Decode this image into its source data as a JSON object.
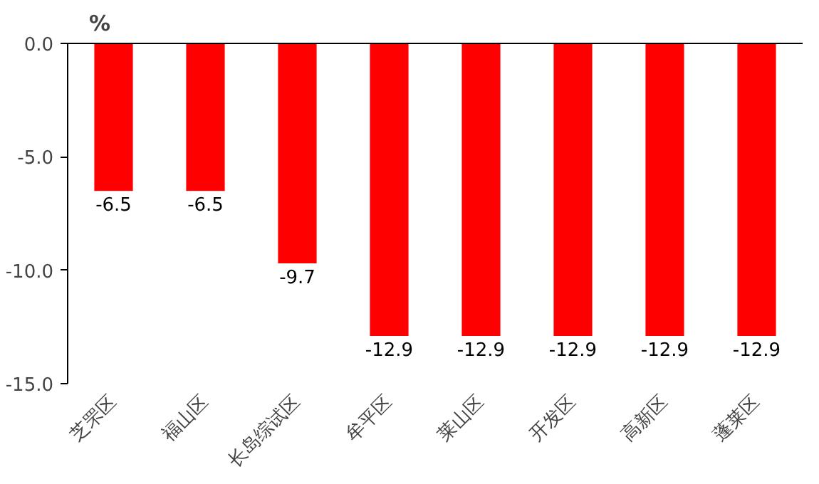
{
  "chart_data": {
    "type": "bar",
    "ylabel": "%",
    "categories": [
      "芝罘区",
      "福山区",
      "长岛综试区",
      "牟平区",
      "莱山区",
      "开发区",
      "高新区",
      "蓬莱区"
    ],
    "values": [
      -6.5,
      -6.5,
      -9.7,
      -12.9,
      -12.9,
      -12.9,
      -12.9,
      -12.9
    ],
    "color": "#ff0000",
    "ylim": [
      -15,
      0
    ],
    "yticks": [
      {
        "value": 0,
        "label": "0.0"
      },
      {
        "value": -5,
        "label": "-5.0"
      },
      {
        "value": -10,
        "label": "-10.0"
      },
      {
        "value": -15,
        "label": "-15.0"
      }
    ],
    "data_labels": true,
    "grid": false
  }
}
